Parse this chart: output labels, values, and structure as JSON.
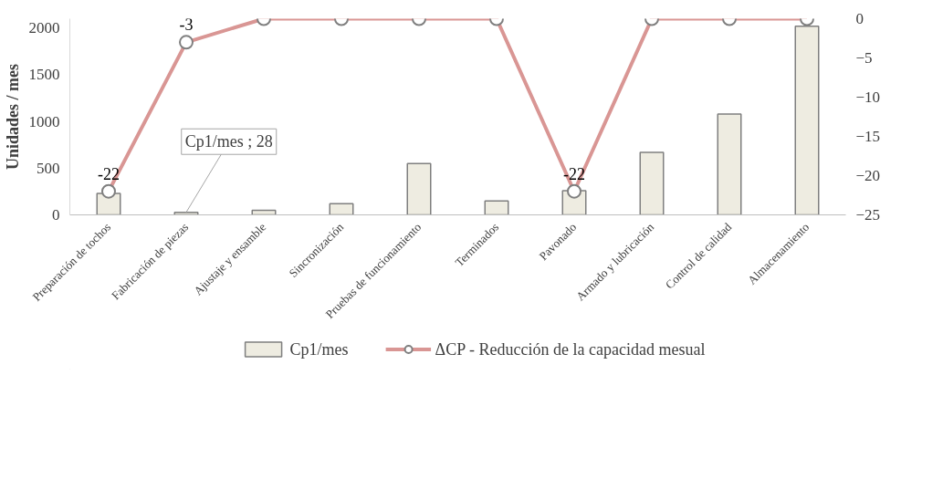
{
  "chart_data": {
    "type": "bar",
    "ylabel": "Unidades / mes",
    "categories": [
      "Preparación de tochos",
      "Fabricación de piezas",
      "Ajustaje y ensamble",
      "Sincronización",
      "Pruebas de funcionamiento",
      "Terminados",
      "Pavonado",
      "Armado y lubricación",
      "Control de calidad",
      "Almacenamiento"
    ],
    "series": [
      {
        "name": "Cp1/mes",
        "color": "#eeece1",
        "values": [
          230,
          28,
          50,
          120,
          550,
          150,
          260,
          670,
          1080,
          2020
        ],
        "value_labels": [
          null,
          "Cp1/mes ; 28",
          null,
          null,
          null,
          null,
          null,
          null,
          null,
          null
        ]
      },
      {
        "name": "ΔCP - Reducción de la capacidad mesual",
        "type": "line",
        "axis": "y2",
        "color": "#d99694",
        "values": [
          -22,
          -3,
          0,
          0,
          0,
          0,
          -22,
          0,
          0,
          0
        ],
        "value_labels": [
          "-22",
          "-3",
          null,
          null,
          null,
          null,
          "-22",
          null,
          null,
          null
        ]
      }
    ],
    "ylim": [
      0,
      2100
    ],
    "yticks": [
      0,
      500,
      1000,
      1500,
      2000
    ],
    "y2lim": [
      -25,
      0
    ],
    "y2ticks": [
      -25,
      -20,
      -15,
      -10,
      -5,
      0
    ],
    "marker": "circle",
    "line_style": "solid",
    "grid": false,
    "legend": "bottom"
  }
}
